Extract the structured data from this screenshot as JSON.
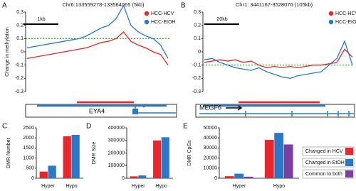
{
  "chart_data": [
    {
      "panel": "A",
      "type": "line",
      "title": "Chr6:133559278-133564065 (5kb)",
      "ylabel": "Change in methylation",
      "ylim": [
        -0.3,
        0.3
      ],
      "yticks": [
        0.3,
        0.2,
        0.1,
        0,
        -0.1,
        -0.2,
        -0.3
      ],
      "scale_bar": "1kb",
      "gene": "EYA4",
      "threshold": 0.1,
      "threshold_color": "#22aa22",
      "series": [
        {
          "name": "HCC-HCV",
          "color": "#e8262b",
          "values": [
            -0.05,
            -0.04,
            -0.03,
            -0.02,
            -0.01,
            0.0,
            0.01,
            0.02,
            0.03,
            0.05,
            0.07,
            0.08,
            0.1,
            0.15,
            0.08,
            0.05,
            0.03,
            0.0,
            -0.02,
            -0.1
          ]
        },
        {
          "name": "HCC-EtOH",
          "color": "#2a78c6",
          "values": [
            0.03,
            0.04,
            0.05,
            0.06,
            0.07,
            0.08,
            0.09,
            0.1,
            0.12,
            0.15,
            0.18,
            0.2,
            0.25,
            0.35,
            0.2,
            0.15,
            0.12,
            0.1,
            0.05,
            -0.05
          ]
        }
      ]
    },
    {
      "panel": "B",
      "type": "line",
      "title": "Chr1: 3441167-3528076 (105kb)",
      "ylim": [
        -0.3,
        0.3
      ],
      "yticks": [
        0.3,
        0.2,
        0.1,
        0,
        -0.1,
        -0.2,
        -0.3
      ],
      "scale_bar": "20kb",
      "gene": "MEGF6",
      "threshold": -0.1,
      "threshold_color": "#22aa22",
      "series": [
        {
          "name": "HCC-HCV",
          "color": "#e8262b",
          "values": [
            -0.08,
            -0.07,
            -0.06,
            -0.07,
            -0.06,
            -0.08,
            -0.07,
            -0.1,
            -0.12,
            -0.11,
            -0.12,
            -0.11,
            -0.12,
            -0.11,
            -0.1,
            -0.1,
            -0.09,
            -0.08,
            0.02,
            -0.04
          ]
        },
        {
          "name": "HCC-EtOH",
          "color": "#2a78c6",
          "values": [
            -0.06,
            -0.05,
            -0.08,
            -0.1,
            -0.12,
            -0.13,
            -0.14,
            -0.12,
            -0.15,
            -0.17,
            -0.19,
            -0.2,
            -0.18,
            -0.17,
            -0.16,
            -0.15,
            -0.1,
            -0.05,
            0.08,
            -0.1
          ]
        }
      ]
    },
    {
      "panel": "C",
      "type": "bar",
      "ylabel": "DMR Number",
      "categories": [
        "Hyper",
        "Hypo"
      ],
      "ylim": [
        0,
        2500
      ],
      "yticks": [
        0,
        500,
        1000,
        1500,
        2000,
        2500
      ],
      "series": [
        {
          "color": "#e8262b",
          "values": [
            330,
            2080
          ]
        },
        {
          "color": "#2a78c6",
          "values": [
            620,
            2150
          ]
        }
      ]
    },
    {
      "panel": "D",
      "type": "bar",
      "ylabel": "DMR Size",
      "categories": [
        "Hyper",
        "Hypo"
      ],
      "ylim": [
        0,
        400000
      ],
      "yticks": [
        0,
        100000,
        200000,
        300000,
        400000
      ],
      "series": [
        {
          "color": "#e8262b",
          "values": [
            15000,
            300000
          ]
        },
        {
          "color": "#2a78c6",
          "values": [
            22000,
            325000
          ]
        }
      ]
    },
    {
      "panel": "E",
      "type": "bar",
      "ylabel": "DMR CpGs",
      "categories": [
        "Hyper",
        "Hypo"
      ],
      "ylim": [
        0,
        50000
      ],
      "yticks": [
        0,
        10000,
        20000,
        30000,
        40000,
        50000
      ],
      "series": [
        {
          "name": "Changed in HCV",
          "color": "#e8262b",
          "values": [
            2000,
            38000
          ]
        },
        {
          "name": "Changed in EtOH",
          "color": "#2a78c6",
          "values": [
            4500,
            45000
          ]
        },
        {
          "name": "Common to both",
          "color": "#7a3fa0",
          "values": [
            1500,
            33500
          ]
        }
      ]
    }
  ]
}
